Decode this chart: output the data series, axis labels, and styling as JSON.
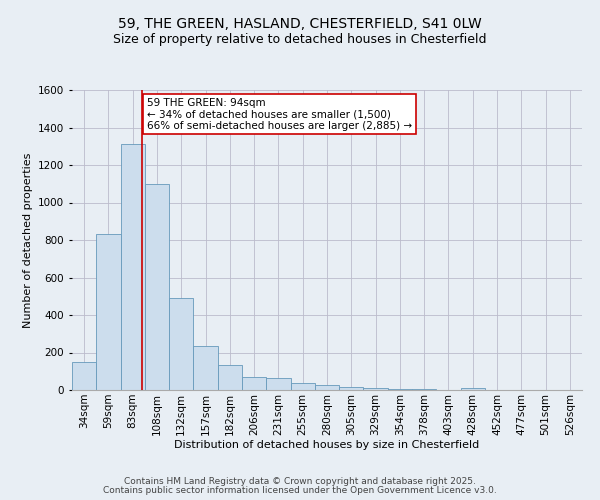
{
  "title": "59, THE GREEN, HASLAND, CHESTERFIELD, S41 0LW",
  "subtitle": "Size of property relative to detached houses in Chesterfield",
  "xlabel": "Distribution of detached houses by size in Chesterfield",
  "ylabel": "Number of detached properties",
  "bar_labels": [
    "34sqm",
    "59sqm",
    "83sqm",
    "108sqm",
    "132sqm",
    "157sqm",
    "182sqm",
    "206sqm",
    "231sqm",
    "255sqm",
    "280sqm",
    "305sqm",
    "329sqm",
    "354sqm",
    "378sqm",
    "403sqm",
    "428sqm",
    "452sqm",
    "477sqm",
    "501sqm",
    "526sqm"
  ],
  "bar_values": [
    150,
    830,
    1310,
    1100,
    490,
    235,
    135,
    70,
    65,
    38,
    25,
    15,
    10,
    5,
    5,
    2,
    10,
    0,
    0,
    0,
    0
  ],
  "bin_edges": [
    21.5,
    46.5,
    71.5,
    96.5,
    121.5,
    146.5,
    171.5,
    196.5,
    221.5,
    246.5,
    271.5,
    296.5,
    321.5,
    346.5,
    371.5,
    396.5,
    421.5,
    446.5,
    471.5,
    496.5,
    521.5,
    546.5
  ],
  "bar_color": "#ccdded",
  "bar_edge_color": "#6699bb",
  "red_line_x": 94,
  "ylim": [
    0,
    1600
  ],
  "xlim": [
    21.5,
    546.5
  ],
  "annotation_text": "59 THE GREEN: 94sqm\n← 34% of detached houses are smaller (1,500)\n66% of semi-detached houses are larger (2,885) →",
  "annotation_box_facecolor": "#ffffff",
  "annotation_box_edgecolor": "#cc0000",
  "footer_line1": "Contains HM Land Registry data © Crown copyright and database right 2025.",
  "footer_line2": "Contains public sector information licensed under the Open Government Licence v3.0.",
  "background_color": "#e8eef4",
  "plot_background_color": "#e8eef4",
  "grid_color": "#bbbbcc",
  "title_fontsize": 10,
  "subtitle_fontsize": 9,
  "axis_label_fontsize": 8,
  "tick_fontsize": 7.5,
  "annotation_fontsize": 7.5,
  "footer_fontsize": 6.5
}
